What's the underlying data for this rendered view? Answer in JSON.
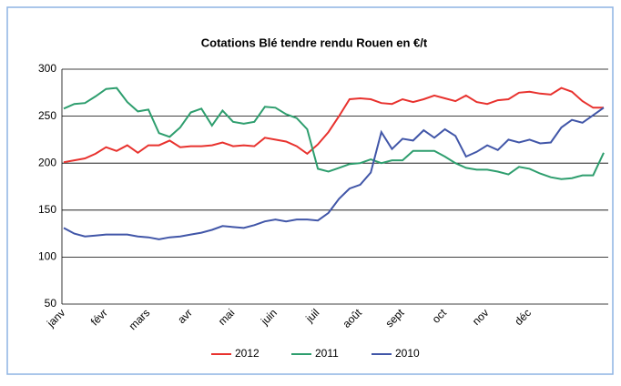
{
  "chart_data": {
    "type": "line",
    "title": "Cotations Blé tendre rendu Rouen en €/t",
    "categories": [
      "janv",
      null,
      null,
      null,
      "févr",
      null,
      null,
      null,
      "mars",
      null,
      null,
      null,
      "avr",
      null,
      null,
      null,
      "mai",
      null,
      null,
      null,
      "juin",
      null,
      null,
      null,
      "juil",
      null,
      null,
      null,
      "août",
      null,
      null,
      null,
      "sept",
      null,
      null,
      null,
      "oct",
      null,
      null,
      null,
      "nov",
      null,
      null,
      null,
      "déc",
      null,
      null,
      null,
      null,
      null,
      null,
      null
    ],
    "series": [
      {
        "name": "2012",
        "color": "#e8322e",
        "values": [
          201,
          203,
          205,
          210,
          217,
          213,
          219,
          211,
          219,
          219,
          224,
          217,
          218,
          218,
          219,
          222,
          218,
          219,
          218,
          227,
          225,
          223,
          218,
          210,
          220,
          233,
          250,
          268,
          269,
          268,
          264,
          263,
          268,
          265,
          268,
          272,
          269,
          266,
          272,
          265,
          263,
          267,
          268,
          275,
          276,
          274,
          273,
          280,
          276,
          266,
          259,
          259
        ]
      },
      {
        "name": "2011",
        "color": "#2e9e6e",
        "values": [
          258,
          263,
          264,
          271,
          279,
          280,
          265,
          255,
          257,
          232,
          228,
          238,
          254,
          258,
          240,
          256,
          244,
          242,
          244,
          260,
          259,
          252,
          248,
          236,
          194,
          191,
          195,
          199,
          200,
          204,
          200,
          203,
          203,
          213,
          213,
          213,
          207,
          200,
          195,
          193,
          193,
          191,
          188,
          196,
          194,
          189,
          185,
          183,
          184,
          187,
          187,
          211
        ]
      },
      {
        "name": "2010",
        "color": "#4156a8",
        "values": [
          131,
          125,
          122,
          123,
          124,
          124,
          124,
          122,
          121,
          119,
          121,
          122,
          124,
          126,
          129,
          133,
          132,
          131,
          134,
          138,
          140,
          138,
          140,
          140,
          139,
          147,
          162,
          173,
          177,
          190,
          233,
          215,
          226,
          224,
          235,
          227,
          236,
          229,
          207,
          212,
          219,
          214,
          225,
          222,
          225,
          221,
          222,
          238,
          246,
          243,
          251,
          259
        ]
      }
    ],
    "ylim": [
      50,
      300
    ],
    "yticks": [
      50,
      100,
      150,
      200,
      250,
      300
    ],
    "grid": true,
    "legend": "bottom"
  }
}
